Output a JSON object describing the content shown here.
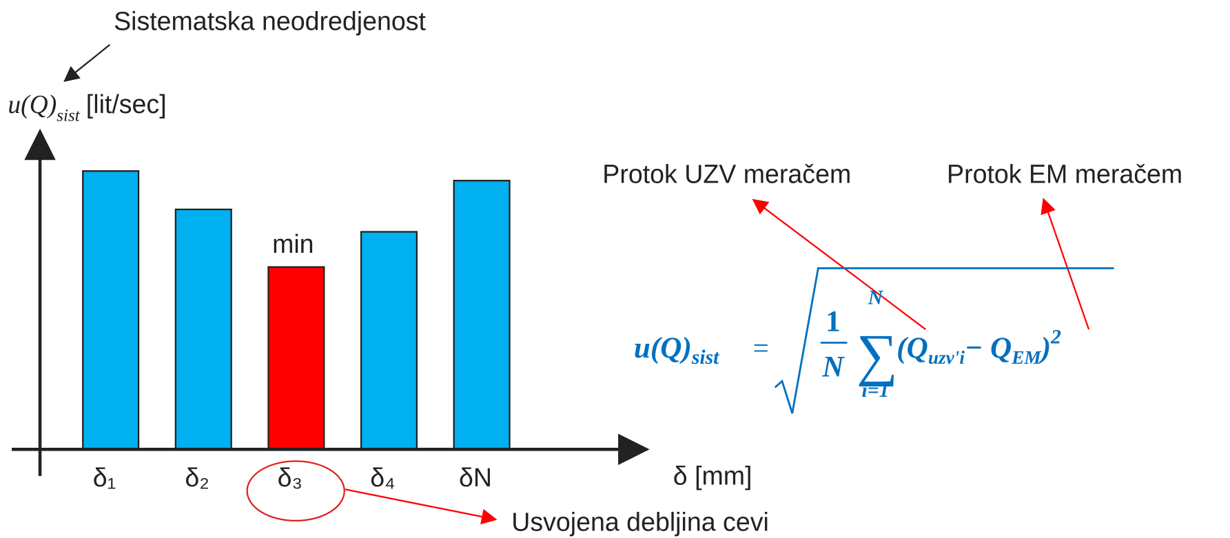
{
  "chart_data": {
    "type": "bar",
    "annotation_title": "Sistematska neodredjenost",
    "ylabel": {
      "symbol": "u(Q)",
      "subscript": "sist",
      "unit": "[lit/sec]"
    },
    "xlabel": "δ [mm]",
    "categories": [
      "δ₁",
      "δ₂",
      "δ₃",
      "δ₄",
      "δN"
    ],
    "values": [
      87,
      75,
      57,
      68,
      84
    ],
    "colors": [
      "#00b0f0",
      "#00b0f0",
      "#ff0000",
      "#00b0f0",
      "#00b0f0"
    ],
    "ylim": [
      0,
      100
    ],
    "min_label": "min",
    "selection_label": "Usvojena debljina cevi"
  },
  "formula": {
    "lhs": "u(Q)",
    "lhs_sub": "sist",
    "equals": "=",
    "num": "1",
    "den": "N",
    "sum": "∑",
    "upper": "N",
    "lower": "i=1",
    "q1": "(Q",
    "q1_sub": "uzv'i",
    "q2": "− Q",
    "q2_sub": "EM",
    "close": ")",
    "power": "2"
  },
  "labels": {
    "uzv": "Protok UZV meračem",
    "em": "Protok EM meračem"
  }
}
